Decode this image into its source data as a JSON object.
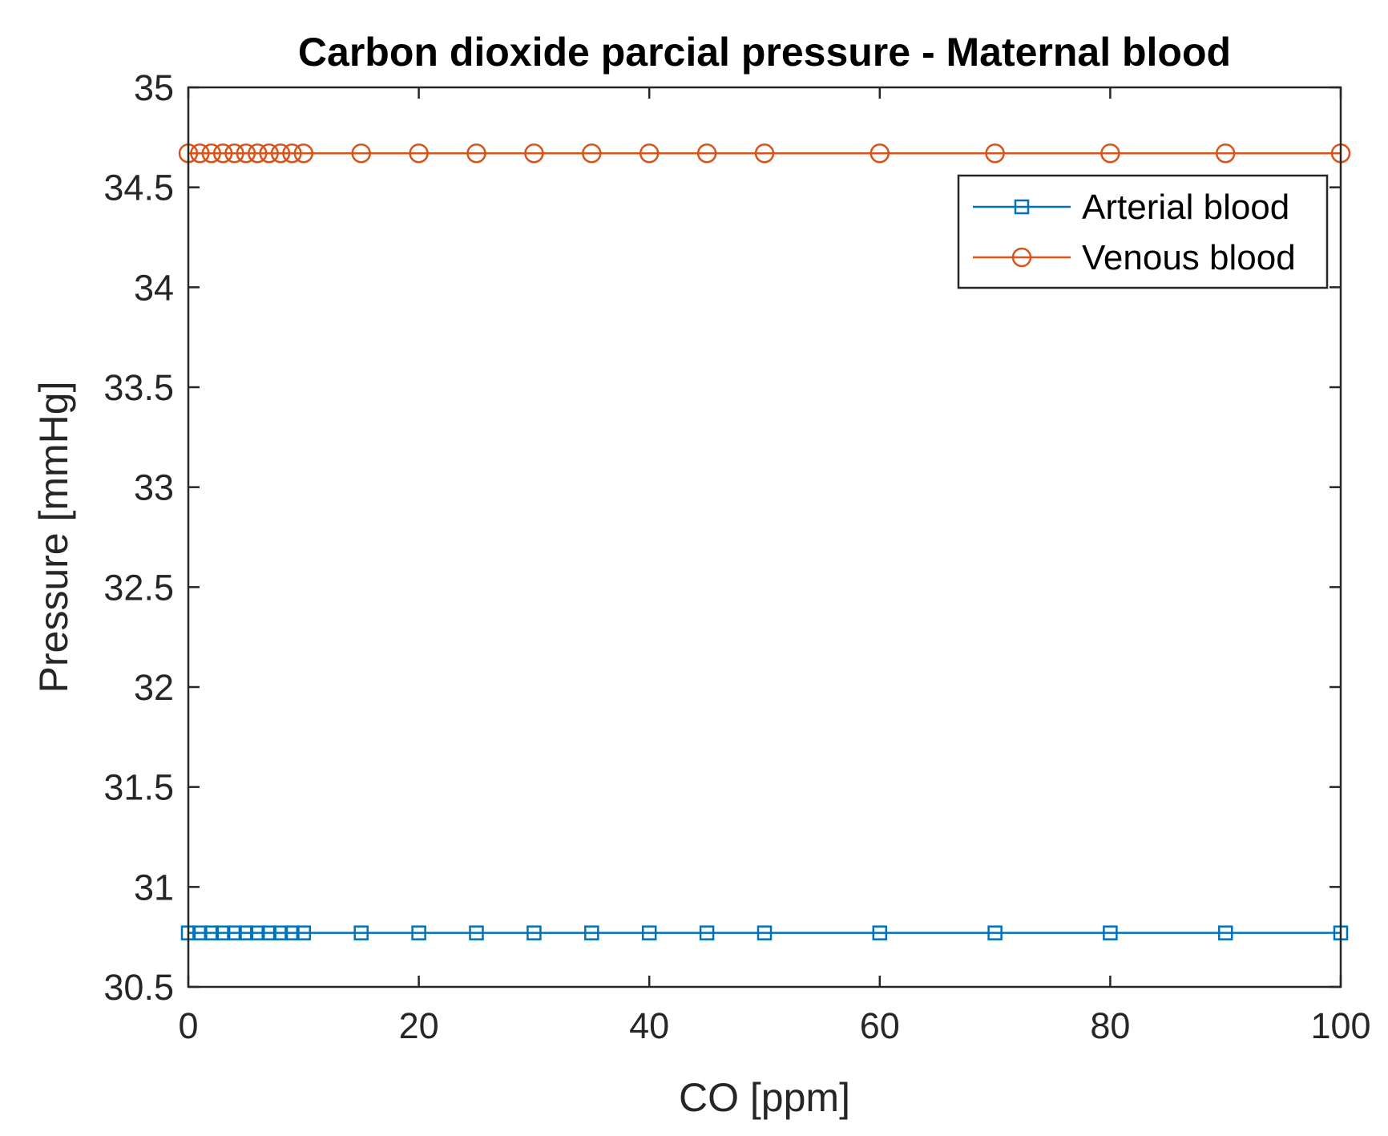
{
  "chart_data": {
    "type": "line",
    "title": "Carbon dioxide parcial pressure - Maternal blood",
    "xlabel": "CO [ppm]",
    "ylabel": "Pressure [mmHg]",
    "xlim": [
      0,
      100
    ],
    "ylim": [
      30.5,
      35
    ],
    "xticks": [
      "0",
      "20",
      "40",
      "60",
      "80",
      "100"
    ],
    "yticks": [
      "30.5",
      "31",
      "31.5",
      "32",
      "32.5",
      "33",
      "33.5",
      "34",
      "34.5",
      "35"
    ],
    "xtick_values": [
      0,
      20,
      40,
      60,
      80,
      100
    ],
    "ytick_values": [
      30.5,
      31,
      31.5,
      32,
      32.5,
      33,
      33.5,
      34,
      34.5,
      35
    ],
    "grid": false,
    "legend_position": "top-right",
    "x": [
      0,
      1,
      2,
      3,
      4,
      5,
      6,
      7,
      8,
      9,
      10,
      15,
      20,
      25,
      30,
      35,
      40,
      45,
      50,
      60,
      70,
      80,
      90,
      100
    ],
    "series": [
      {
        "name": "Arterial blood",
        "marker": "square",
        "color": "#0072BD",
        "values": [
          30.77,
          30.77,
          30.77,
          30.77,
          30.77,
          30.77,
          30.77,
          30.77,
          30.77,
          30.77,
          30.77,
          30.77,
          30.77,
          30.77,
          30.77,
          30.77,
          30.77,
          30.77,
          30.77,
          30.77,
          30.77,
          30.77,
          30.77,
          30.77
        ]
      },
      {
        "name": "Venous blood",
        "marker": "circle",
        "color": "#D95319",
        "values": [
          34.67,
          34.67,
          34.67,
          34.67,
          34.67,
          34.67,
          34.67,
          34.67,
          34.67,
          34.67,
          34.67,
          34.67,
          34.67,
          34.67,
          34.67,
          34.67,
          34.67,
          34.67,
          34.67,
          34.67,
          34.67,
          34.67,
          34.67,
          34.67
        ]
      }
    ]
  }
}
